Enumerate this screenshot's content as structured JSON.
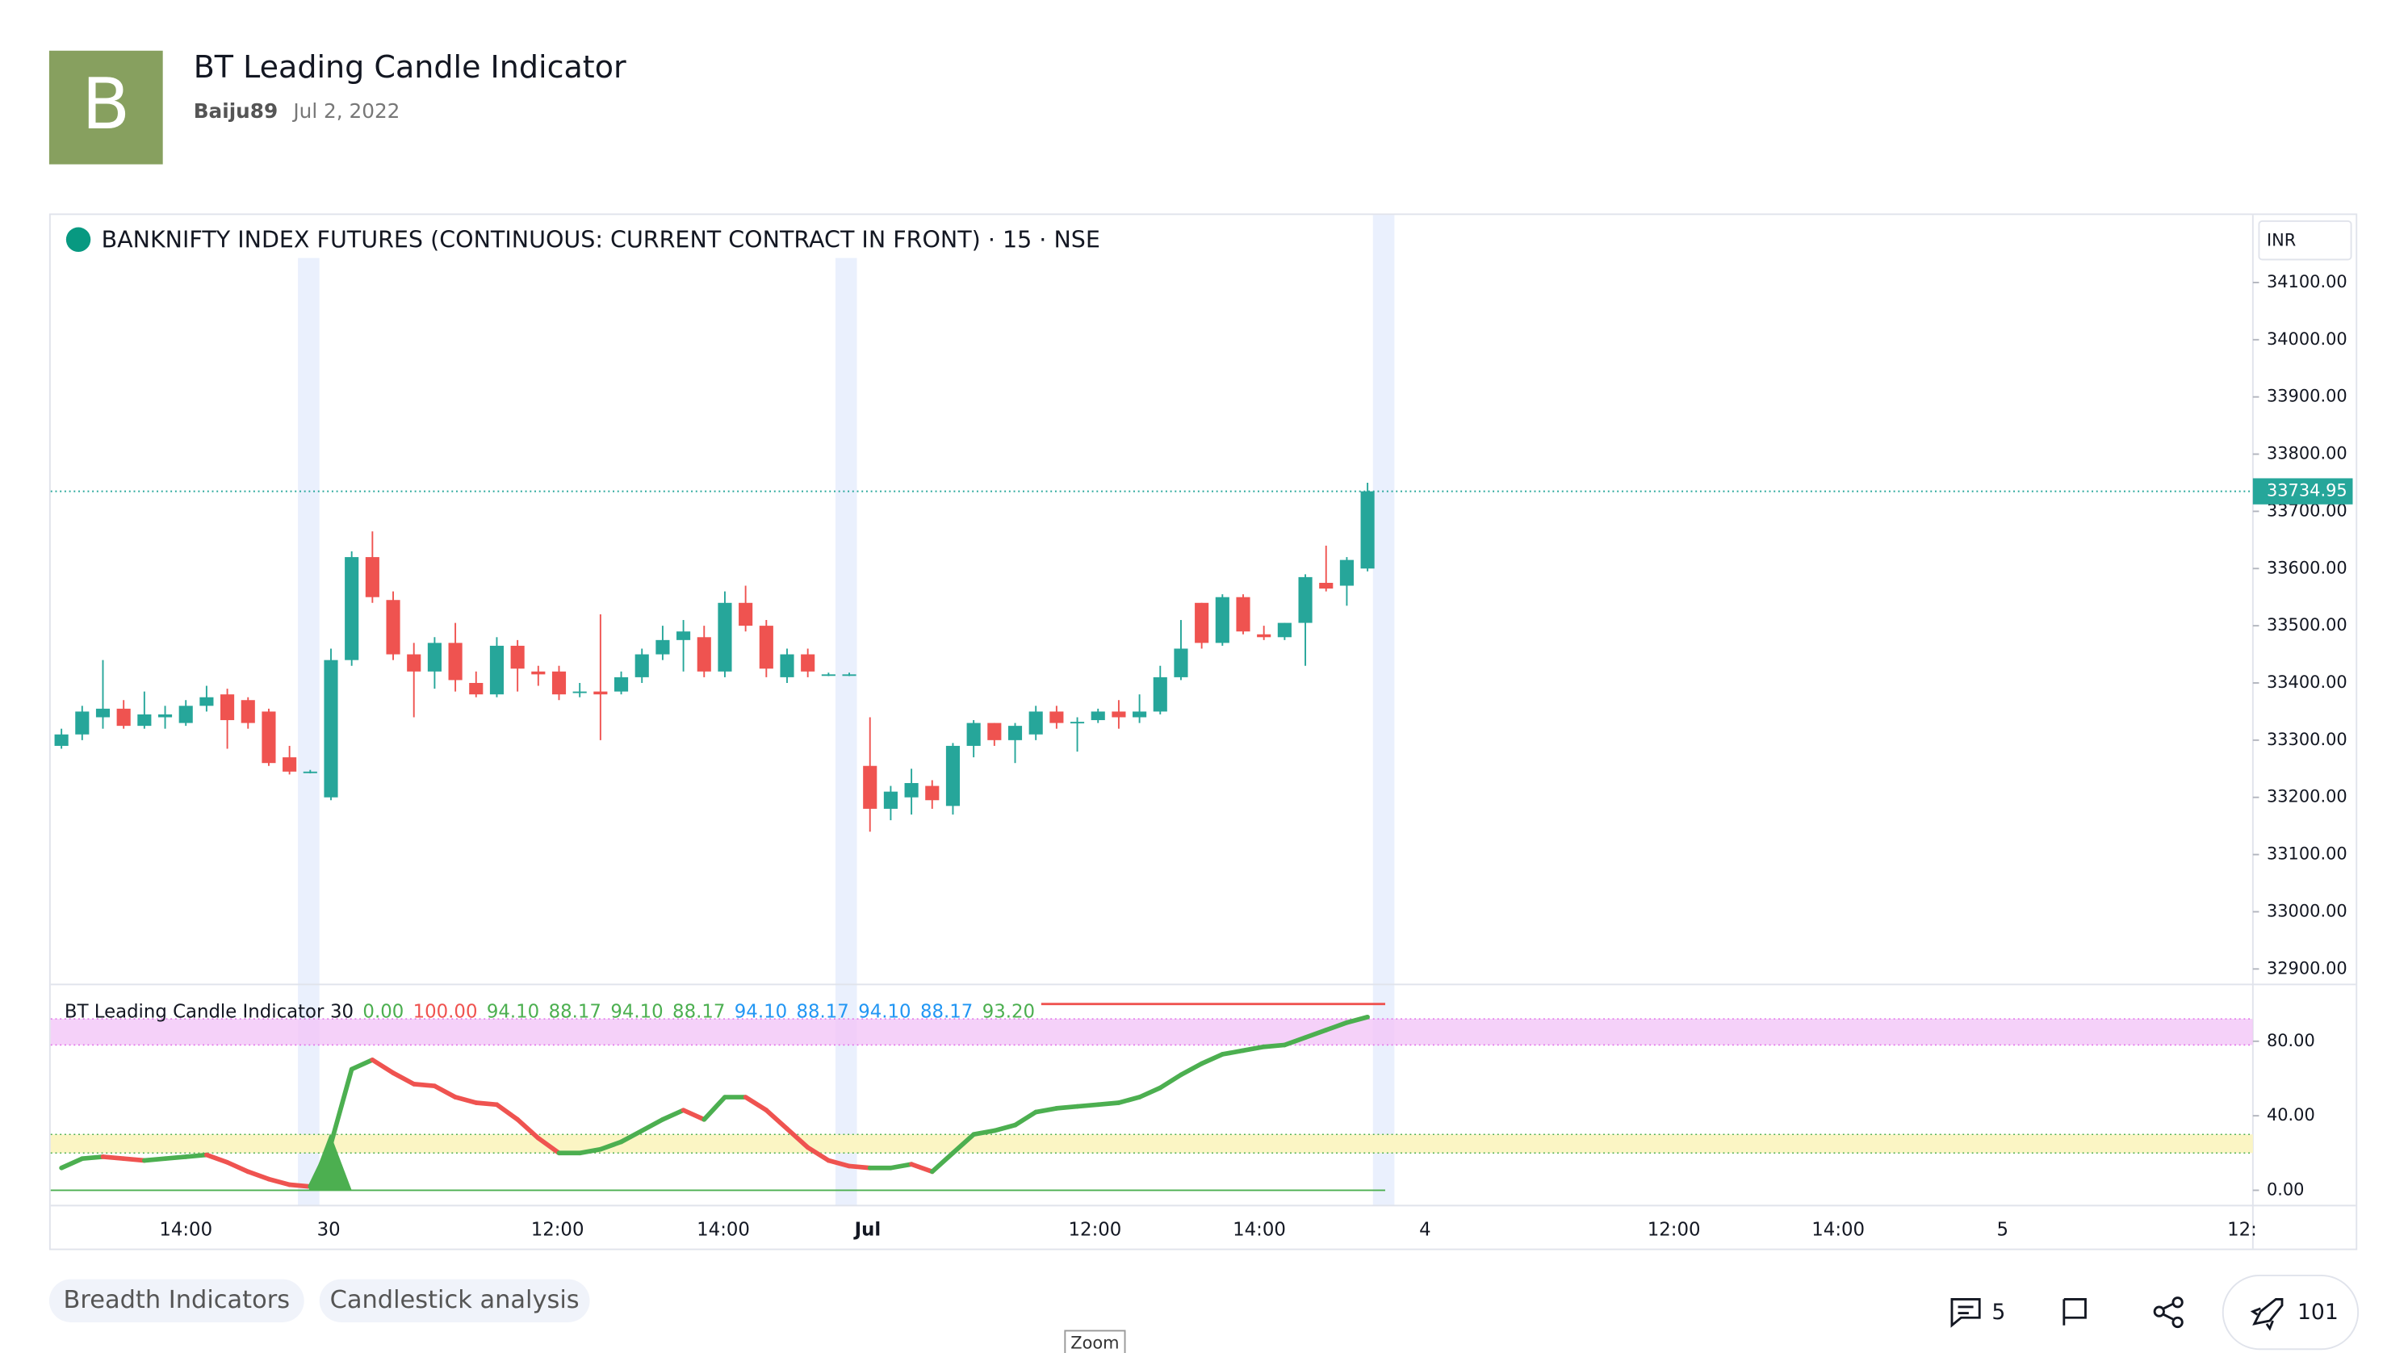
{
  "header": {
    "avatar_letter": "B",
    "title": "BT Leading Candle Indicator",
    "author": "Baiju89",
    "date": "Jul 2, 2022"
  },
  "chart": {
    "symbol_title": "BANKNIFTY INDEX FUTURES (CONTINUOUS: CURRENT CONTRACT IN FRONT) · 15 · NSE",
    "currency": "INR",
    "up_color": "#26a69a",
    "down_color": "#ef5350",
    "ylim": [
      32873,
      34218
    ],
    "yticks": [
      {
        "value": 34100,
        "label": "34100.00"
      },
      {
        "value": 34000,
        "label": "34000.00"
      },
      {
        "value": 33900,
        "label": "33900.00"
      },
      {
        "value": 33800,
        "label": "33800.00"
      },
      {
        "value": 33700,
        "label": "33700.00"
      },
      {
        "value": 33600,
        "label": "33600.00"
      },
      {
        "value": 33500,
        "label": "33500.00"
      },
      {
        "value": 33400,
        "label": "33400.00"
      },
      {
        "value": 33300,
        "label": "33300.00"
      },
      {
        "value": 33200,
        "label": "33200.00"
      },
      {
        "value": 33100,
        "label": "33100.00"
      },
      {
        "value": 33000,
        "label": "33000.00"
      },
      {
        "value": 32900,
        "label": "32900.00"
      }
    ],
    "last_price": {
      "value": 33734.95,
      "label": "33734.95"
    },
    "candles": [
      {
        "open": 33290,
        "high": 33320,
        "low": 33285,
        "close": 33310
      },
      {
        "open": 33310,
        "high": 33360,
        "low": 33300,
        "close": 33350
      },
      {
        "open": 33340,
        "high": 33440,
        "low": 33320,
        "close": 33355
      },
      {
        "open": 33355,
        "high": 33370,
        "low": 33320,
        "close": 33325
      },
      {
        "open": 33325,
        "high": 33385,
        "low": 33320,
        "close": 33345
      },
      {
        "open": 33340,
        "high": 33360,
        "low": 33320,
        "close": 33345
      },
      {
        "open": 33330,
        "high": 33370,
        "low": 33325,
        "close": 33360
      },
      {
        "open": 33360,
        "high": 33395,
        "low": 33350,
        "close": 33375
      },
      {
        "open": 33380,
        "high": 33390,
        "low": 33285,
        "close": 33335
      },
      {
        "open": 33370,
        "high": 33375,
        "low": 33320,
        "close": 33330
      },
      {
        "open": 33350,
        "high": 33355,
        "low": 33255,
        "close": 33260
      },
      {
        "open": 33270,
        "high": 33290,
        "low": 33240,
        "close": 33245
      },
      {
        "open": 33245,
        "high": 33248,
        "low": 33242,
        "close": 33245
      },
      {
        "open": 33200,
        "high": 33460,
        "low": 33195,
        "close": 33440
      },
      {
        "open": 33440,
        "high": 33630,
        "low": 33430,
        "close": 33620
      },
      {
        "open": 33620,
        "high": 33665,
        "low": 33540,
        "close": 33550
      },
      {
        "open": 33545,
        "high": 33560,
        "low": 33440,
        "close": 33450
      },
      {
        "open": 33450,
        "high": 33470,
        "low": 33340,
        "close": 33420
      },
      {
        "open": 33420,
        "high": 33480,
        "low": 33390,
        "close": 33470
      },
      {
        "open": 33470,
        "high": 33505,
        "low": 33385,
        "close": 33405
      },
      {
        "open": 33400,
        "high": 33420,
        "low": 33375,
        "close": 33380
      },
      {
        "open": 33380,
        "high": 33480,
        "low": 33375,
        "close": 33465
      },
      {
        "open": 33465,
        "high": 33475,
        "low": 33385,
        "close": 33425
      },
      {
        "open": 33420,
        "high": 33430,
        "low": 33395,
        "close": 33415
      },
      {
        "open": 33420,
        "high": 33430,
        "low": 33370,
        "close": 33380
      },
      {
        "open": 33385,
        "high": 33400,
        "low": 33375,
        "close": 33385
      },
      {
        "open": 33385,
        "high": 33520,
        "low": 33300,
        "close": 33380
      },
      {
        "open": 33385,
        "high": 33420,
        "low": 33380,
        "close": 33410
      },
      {
        "open": 33410,
        "high": 33460,
        "low": 33400,
        "close": 33450
      },
      {
        "open": 33450,
        "high": 33500,
        "low": 33440,
        "close": 33475
      },
      {
        "open": 33475,
        "high": 33510,
        "low": 33420,
        "close": 33490
      },
      {
        "open": 33480,
        "high": 33500,
        "low": 33410,
        "close": 33420
      },
      {
        "open": 33420,
        "high": 33560,
        "low": 33410,
        "close": 33540
      },
      {
        "open": 33540,
        "high": 33570,
        "low": 33490,
        "close": 33500
      },
      {
        "open": 33500,
        "high": 33510,
        "low": 33410,
        "close": 33425
      },
      {
        "open": 33410,
        "high": 33460,
        "low": 33400,
        "close": 33450
      },
      {
        "open": 33450,
        "high": 33460,
        "low": 33410,
        "close": 33420
      },
      {
        "open": 33415,
        "high": 33418,
        "low": 33412,
        "close": 33415
      },
      {
        "open": 33415,
        "high": 33418,
        "low": 33412,
        "close": 33415
      },
      {
        "open": 33255,
        "high": 33340,
        "low": 33140,
        "close": 33180
      },
      {
        "open": 33180,
        "high": 33220,
        "low": 33160,
        "close": 33210
      },
      {
        "open": 33200,
        "high": 33250,
        "low": 33170,
        "close": 33225
      },
      {
        "open": 33220,
        "high": 33230,
        "low": 33180,
        "close": 33195
      },
      {
        "open": 33185,
        "high": 33295,
        "low": 33170,
        "close": 33290
      },
      {
        "open": 33290,
        "high": 33335,
        "low": 33270,
        "close": 33330
      },
      {
        "open": 33330,
        "high": 33330,
        "low": 33290,
        "close": 33300
      },
      {
        "open": 33300,
        "high": 33330,
        "low": 33260,
        "close": 33325
      },
      {
        "open": 33310,
        "high": 33360,
        "low": 33300,
        "close": 33350
      },
      {
        "open": 33350,
        "high": 33360,
        "low": 33320,
        "close": 33330
      },
      {
        "open": 33330,
        "high": 33340,
        "low": 33280,
        "close": 33332
      },
      {
        "open": 33335,
        "high": 33355,
        "low": 33330,
        "close": 33350
      },
      {
        "open": 33350,
        "high": 33370,
        "low": 33320,
        "close": 33340
      },
      {
        "open": 33340,
        "high": 33380,
        "low": 33330,
        "close": 33350
      },
      {
        "open": 33350,
        "high": 33430,
        "low": 33345,
        "close": 33410
      },
      {
        "open": 33410,
        "high": 33510,
        "low": 33405,
        "close": 33460
      },
      {
        "open": 33540,
        "high": 33540,
        "low": 33460,
        "close": 33470
      },
      {
        "open": 33470,
        "high": 33555,
        "low": 33465,
        "close": 33550
      },
      {
        "open": 33550,
        "high": 33555,
        "low": 33485,
        "close": 33490
      },
      {
        "open": 33485,
        "high": 33500,
        "low": 33475,
        "close": 33480
      },
      {
        "open": 33480,
        "high": 33505,
        "low": 33475,
        "close": 33505
      },
      {
        "open": 33505,
        "high": 33590,
        "low": 33430,
        "close": 33585
      },
      {
        "open": 33575,
        "high": 33640,
        "low": 33560,
        "close": 33565
      },
      {
        "open": 33570,
        "high": 33620,
        "low": 33535,
        "close": 33615
      },
      {
        "open": 33600,
        "high": 33750,
        "low": 33595,
        "close": 33735
      }
    ],
    "indicator": {
      "name": "BT Leading Candle Indicator",
      "length": "30",
      "legend_values": [
        {
          "text": "0.00",
          "color": "#4caf50"
        },
        {
          "text": "100.00",
          "color": "#ef5350"
        },
        {
          "text": "94.10",
          "color": "#4caf50"
        },
        {
          "text": "88.17",
          "color": "#4caf50"
        },
        {
          "text": "94.10",
          "color": "#4caf50"
        },
        {
          "text": "88.17",
          "color": "#4caf50"
        },
        {
          "text": "94.10",
          "color": "#2196f3"
        },
        {
          "text": "88.17",
          "color": "#2196f3"
        },
        {
          "text": "94.10",
          "color": "#2196f3"
        },
        {
          "text": "88.17",
          "color": "#2196f3"
        },
        {
          "text": "93.20",
          "color": "#4caf50"
        }
      ],
      "ylim": [
        -8.2,
        110.5
      ],
      "yticks": [
        {
          "value": 80,
          "label": "80.00"
        },
        {
          "value": 40,
          "label": "40.00"
        },
        {
          "value": 0,
          "label": "0.00"
        }
      ],
      "upper_line": 100,
      "zero_line": 0,
      "upper_band": [
        78,
        92
      ],
      "lower_band": [
        20,
        30
      ],
      "up_color": "#4caf50",
      "down_color": "#ef5350",
      "line": [
        12,
        17,
        18,
        17,
        16,
        17,
        18,
        19,
        15,
        10,
        6,
        3,
        2,
        25,
        65,
        70,
        63,
        57,
        56,
        50,
        47,
        46,
        38,
        28,
        20,
        20,
        22,
        26,
        32,
        38,
        43,
        38,
        50,
        50,
        43,
        33,
        23,
        16,
        13,
        12,
        12,
        14,
        10,
        20,
        30,
        32,
        35,
        42,
        44,
        45,
        46,
        47,
        50,
        55,
        62,
        68,
        73,
        75,
        77,
        78,
        82,
        86,
        90,
        93
      ]
    },
    "time_labels": [
      "14:00",
      "30",
      "12:00",
      "14:00",
      "Jul",
      "12:00",
      "14:00",
      "4",
      "12:00",
      "14:00",
      "5",
      "12:"
    ]
  },
  "tags": [
    "Breadth Indicators",
    "Candlestick analysis"
  ],
  "actions": {
    "comments": 5,
    "boosts": 101
  },
  "tooltip": "Zoom"
}
